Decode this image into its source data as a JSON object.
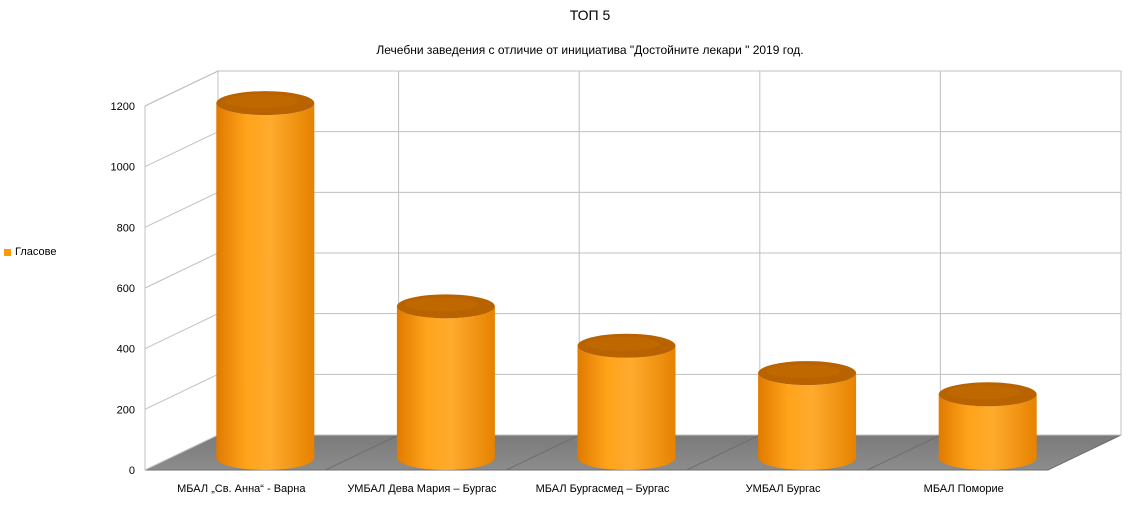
{
  "chart_data": {
    "type": "bar",
    "style": "3d-cylinder",
    "title": "ТОП 5",
    "subtitle": "Лечебни заведения с отличие от инициатива  \"Достойните лекари \" 2019 год.",
    "categories": [
      "МБАЛ „Св. Анна“ - Варна",
      "УМБАЛ Дева Мария – Бургас",
      "МБАЛ Бургасмед – Бургас",
      "УМБАЛ Бургас",
      "МБАЛ Поморие"
    ],
    "series": [
      {
        "name": "Гласове",
        "values": [
          1170,
          500,
          370,
          280,
          210
        ]
      }
    ],
    "ylim": [
      0,
      1200
    ],
    "yticks": [
      0,
      200,
      400,
      600,
      800,
      1000,
      1200
    ],
    "grid": true,
    "legend_position": "left",
    "colors": {
      "bar": "#ff9900",
      "bar_dark": "#b86200",
      "floor": "#808080",
      "grid": "#c0c0c0"
    }
  }
}
